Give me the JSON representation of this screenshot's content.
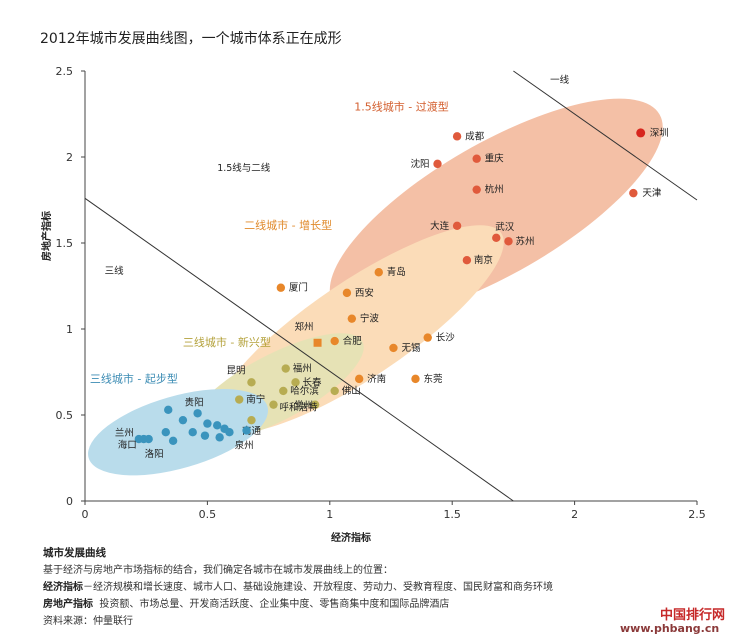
{
  "title": "2012年城市发展曲线图，一个城市体系正在成形",
  "chart_data": {
    "type": "scatter",
    "xlabel": "经济指标",
    "ylabel": "房地产指标",
    "xlim": [
      0,
      2.5
    ],
    "ylim": [
      0,
      2.5
    ],
    "xticks": [
      "0",
      "0.5",
      "1",
      "1.5",
      "2",
      "2.5"
    ],
    "yticks": [
      "0",
      "0.5",
      "1",
      "1.5",
      "2",
      "2.5"
    ],
    "zones": {
      "tier1": "一线",
      "tier1_5_vs_2": "1.5线与二线",
      "tier3": "三线"
    },
    "groups": [
      {
        "name": "1.5线城市 - 过渡型",
        "color": "#f4c0a6",
        "label_color": "#d35f2f",
        "point_color": "#e05a3c",
        "ellipse": {
          "cx": 1.68,
          "cy": 1.7,
          "rx": 0.77,
          "ry": 0.38,
          "angle": -30
        },
        "points": [
          {
            "name": "成都",
            "x": 1.52,
            "y": 2.12
          },
          {
            "name": "沈阳",
            "x": 1.44,
            "y": 1.96
          },
          {
            "name": "重庆",
            "x": 1.6,
            "y": 1.99
          },
          {
            "name": "杭州",
            "x": 1.6,
            "y": 1.81
          },
          {
            "name": "天津",
            "x": 2.24,
            "y": 1.79
          },
          {
            "name": "大连",
            "x": 1.52,
            "y": 1.6
          },
          {
            "name": "武汉",
            "x": 1.68,
            "y": 1.53
          },
          {
            "name": "苏州",
            "x": 1.73,
            "y": 1.51
          },
          {
            "name": "南京",
            "x": 1.56,
            "y": 1.4
          }
        ]
      },
      {
        "name": "二线城市 - 增长型",
        "color": "#fbdcb8",
        "label_color": "#e08a2b",
        "point_color": "#e8872a",
        "ellipse": {
          "cx": 1.12,
          "cy": 1.0,
          "rx": 0.7,
          "ry": 0.28,
          "angle": -34
        },
        "points": [
          {
            "name": "青岛",
            "x": 1.2,
            "y": 1.33
          },
          {
            "name": "厦门",
            "x": 0.8,
            "y": 1.24
          },
          {
            "name": "西安",
            "x": 1.07,
            "y": 1.21
          },
          {
            "name": "宁波",
            "x": 1.09,
            "y": 1.06
          },
          {
            "name": "长沙",
            "x": 1.4,
            "y": 0.95
          },
          {
            "name": "合肥",
            "x": 1.02,
            "y": 0.93
          },
          {
            "name": "无锡",
            "x": 1.26,
            "y": 0.89
          },
          {
            "name": "济南",
            "x": 1.12,
            "y": 0.71
          },
          {
            "name": "东莞",
            "x": 1.35,
            "y": 0.71
          }
        ],
        "special": [
          {
            "name": "郑州",
            "x": 0.95,
            "y": 0.92
          }
        ]
      },
      {
        "name": "三线城市 - 新兴型",
        "color": "#e6e2b5",
        "label_color": "#b4a23c",
        "point_color": "#b7ac52",
        "ellipse": {
          "cx": 0.78,
          "cy": 0.66,
          "rx": 0.4,
          "ry": 0.19,
          "angle": -28
        },
        "points": [
          {
            "name": "昆明",
            "x": 0.68,
            "y": 0.69
          },
          {
            "name": "福州",
            "x": 0.82,
            "y": 0.77
          },
          {
            "name": "长春",
            "x": 0.86,
            "y": 0.69
          },
          {
            "name": "哈尔滨",
            "x": 0.81,
            "y": 0.64
          },
          {
            "name": "佛山",
            "x": 1.02,
            "y": 0.64
          },
          {
            "name": "南宁",
            "x": 0.63,
            "y": 0.59
          },
          {
            "name": "常州",
            "x": 0.94,
            "y": 0.56
          },
          {
            "name": "呼和浩特",
            "x": 0.77,
            "y": 0.56
          },
          {
            "name": "南通",
            "x": 0.68,
            "y": 0.47
          }
        ]
      },
      {
        "name": "三线城市 - 起步型",
        "color": "#b9dceb",
        "label_color": "#3c8cb4",
        "point_color": "#3a94bd",
        "ellipse": {
          "cx": 0.38,
          "cy": 0.4,
          "rx": 0.38,
          "ry": 0.21,
          "angle": -16
        },
        "points": [
          {
            "name": "贵阳",
            "x": 0.46,
            "y": 0.51
          },
          {
            "name": "",
            "x": 0.34,
            "y": 0.53
          },
          {
            "name": "",
            "x": 0.4,
            "y": 0.47
          },
          {
            "name": "",
            "x": 0.44,
            "y": 0.4
          },
          {
            "name": "",
            "x": 0.5,
            "y": 0.45
          },
          {
            "name": "",
            "x": 0.54,
            "y": 0.44
          },
          {
            "name": "",
            "x": 0.57,
            "y": 0.42
          },
          {
            "name": "",
            "x": 0.59,
            "y": 0.4
          },
          {
            "name": "",
            "x": 0.55,
            "y": 0.37
          },
          {
            "name": "",
            "x": 0.49,
            "y": 0.38
          },
          {
            "name": "",
            "x": 0.36,
            "y": 0.35
          },
          {
            "name": "",
            "x": 0.33,
            "y": 0.4
          },
          {
            "name": "兰州",
            "x": 0.22,
            "y": 0.36
          },
          {
            "name": "海口",
            "x": 0.24,
            "y": 0.36
          },
          {
            "name": "洛阳",
            "x": 0.26,
            "y": 0.36
          },
          {
            "name": "泉州",
            "x": 0.66,
            "y": 0.41
          }
        ]
      }
    ],
    "highlight_points": [
      {
        "name": "深圳",
        "x": 2.27,
        "y": 2.14,
        "color": "#d7261e"
      }
    ],
    "dividers": [
      {
        "from": [
          1.75,
          2.5
        ],
        "to": [
          2.5,
          1.75
        ]
      },
      {
        "from": [
          0.0,
          1.76
        ],
        "to": [
          1.75,
          0.0
        ]
      }
    ]
  },
  "notes": {
    "heading": "城市发展曲线",
    "line1": "基于经济与房地产市场指标的结合，我们确定各城市在城市发展曲线上的位置：",
    "econ_key": "经济指标",
    "econ_text": "－经济规模和增长速度、城市人口、基础设施建设、开放程度、劳动力、受教育程度、国民财富和商务环境",
    "re_key": "房地产指标",
    "re_text": "投资额、市场总量、开发商活跃度、企业集中度、零售商集中度和国际品牌酒店",
    "source": "资料来源：仲量联行"
  },
  "watermark": {
    "line1": "中国排行网",
    "line2": "www.phbang.cn"
  }
}
